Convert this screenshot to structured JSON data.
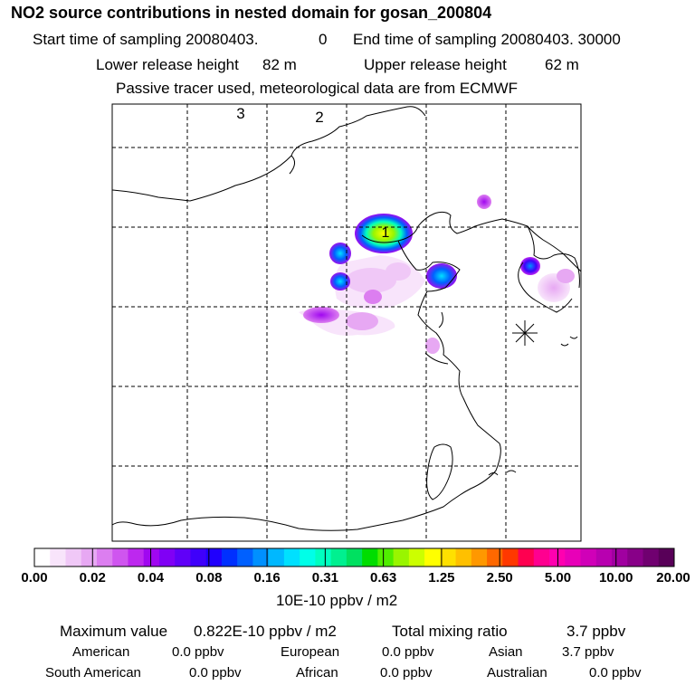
{
  "header": {
    "title": "NO2 source contributions in nested domain for gosan_200804",
    "start_label": "Start time of sampling 20080403.",
    "start_value": "0",
    "end_label": "End time of sampling 20080403. 30000",
    "lower_label": "Lower release height",
    "lower_value": "82 m",
    "upper_label": "Upper release height",
    "upper_value": "62 m",
    "tracer_note": "Passive tracer used, meteorological data are from ECMWF"
  },
  "map": {
    "grid_labels": [
      "3",
      "2",
      "1"
    ],
    "receptor_marker": "asterisk-marker"
  },
  "colorbar": {
    "tick_labels": [
      "0.00",
      "0.02",
      "0.04",
      "0.08",
      "0.16",
      "0.31",
      "0.63",
      "1.25",
      "2.50",
      "5.00",
      "10.00",
      "20.00"
    ],
    "units": "10E-10 ppbv / m2",
    "colors": [
      "#ffffff",
      "#f8e4fb",
      "#f0c8f7",
      "#e7a8f3",
      "#dc7ef0",
      "#cf55ef",
      "#bd28ef",
      "#a007f0",
      "#8000f5",
      "#6000f8",
      "#3f00fb",
      "#2000fd",
      "#0030ff",
      "#0060ff",
      "#0090ff",
      "#00b8ff",
      "#00e0ff",
      "#00ffe8",
      "#00ffc0",
      "#00f090",
      "#00e060",
      "#00dd00",
      "#50ee00",
      "#99f500",
      "#ccff00",
      "#ffff00",
      "#ffe000",
      "#ffc000",
      "#ff9800",
      "#ff6800",
      "#ff3800",
      "#ff0050",
      "#ff0090",
      "#ff00b0",
      "#e800b8",
      "#d000b8",
      "#b800b0",
      "#a000a0",
      "#880088",
      "#700070",
      "#580058"
    ]
  },
  "stats": {
    "max_label": "Maximum value",
    "max_value": "0.822E-10 ppbv / m2",
    "total_label": "Total mixing ratio",
    "total_value": "3.7 ppbv",
    "regions": [
      {
        "name": "American",
        "value": "0.0 ppbv"
      },
      {
        "name": "European",
        "value": "0.0 ppbv"
      },
      {
        "name": "Asian",
        "value": "3.7 ppbv"
      },
      {
        "name": "South American",
        "value": "0.0 ppbv"
      },
      {
        "name": "African",
        "value": "0.0 ppbv"
      },
      {
        "name": "Australian",
        "value": "0.0 ppbv"
      }
    ]
  }
}
